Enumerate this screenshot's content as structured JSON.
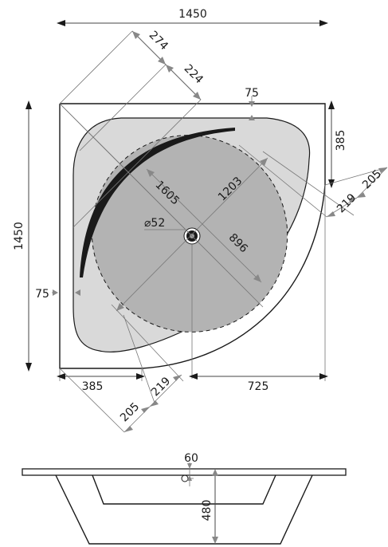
{
  "colors": {
    "rim": "#d9d9d9",
    "basin": "#b3b3b3",
    "outline": "#1a1a1a",
    "dim_line": "#444444",
    "dim_arrow_gray": "#888888"
  },
  "plan": {
    "overall_width": "1450",
    "overall_height": "1450",
    "rim_top": "75",
    "rim_left": "75",
    "diag_274": "274",
    "diag_224": "224",
    "right_385": "385",
    "right_205": "205",
    "right_219": "219",
    "bottom_385": "385",
    "bottom_205": "205",
    "bottom_219": "219",
    "bottom_725": "725",
    "diag_1605": "1605",
    "diag_1203": "1203",
    "diag_896": "896",
    "drain": "⌀52"
  },
  "section": {
    "rim_60": "60",
    "depth_480": "480"
  }
}
